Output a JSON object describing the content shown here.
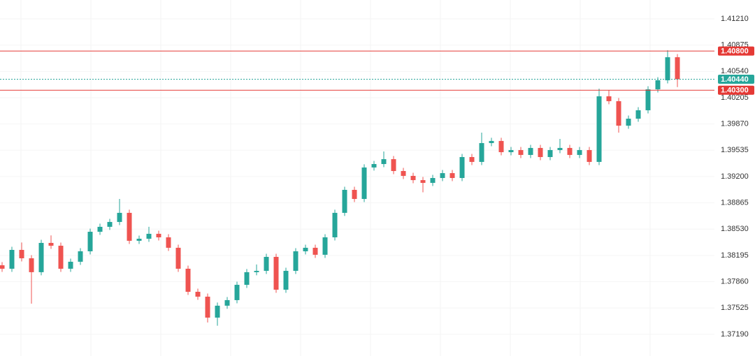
{
  "chart_data": {
    "type": "candlestick",
    "up_color": "#26a69a",
    "down_color": "#ef5350",
    "ylim": [
      1.36914,
      1.4145
    ],
    "yticks": [
      {
        "value": 1.4121,
        "label": "1.41210"
      },
      1.40875,
      {
        "value": 1.4054,
        "label": "1.40540"
      },
      1.40205,
      {
        "value": 1.3987,
        "label": "1.39870"
      },
      1.39535,
      {
        "value": 1.392,
        "label": "1.39200"
      },
      1.38865,
      {
        "value": 1.3853,
        "label": "1.38530"
      },
      1.38195,
      {
        "value": 1.3786,
        "label": "1.37860"
      },
      1.37525,
      {
        "value": 1.3719,
        "label": "1.37190"
      }
    ],
    "grid": true,
    "price_lines": [
      {
        "value": 1.408,
        "label": "1.40800",
        "color": "#e53935",
        "style": "solid"
      },
      {
        "value": 1.4044,
        "label": "1.40440",
        "color": "#26a69a",
        "style": "dotted"
      },
      {
        "value": 1.403,
        "label": "1.40300",
        "color": "#e53935",
        "style": "solid"
      }
    ],
    "open": [
      1.3807,
      1.38026,
      1.38266,
      1.38159,
      1.37982,
      1.38355,
      1.38319,
      1.38026,
      1.38115,
      1.38248,
      1.38497,
      1.3856,
      1.38622,
      1.38738,
      1.38382,
      1.38408,
      1.38471,
      1.38426,
      1.38293,
      1.38026,
      1.37732,
      1.3767,
      1.37403,
      1.37555,
      1.37626,
      1.37821,
      1.37982,
      1.37999,
      1.38177,
      1.37759,
      1.37999,
      1.38248,
      1.38293,
      1.38204,
      1.38426,
      1.38738,
      1.39031,
      1.38915,
      1.39316,
      1.3936,
      1.39422,
      1.39271,
      1.39209,
      1.39155,
      1.3912,
      1.39182,
      1.39244,
      1.39182,
      1.39449,
      1.39387,
      1.39627,
      1.39654,
      1.39511,
      1.39538,
      1.39476,
      1.39565,
      1.39449,
      1.39538,
      1.39565,
      1.39476,
      1.39538,
      1.39387,
      1.40223,
      1.40161,
      1.39849,
      1.39938,
      1.40045,
      1.40312,
      1.40427,
      1.40721
    ],
    "high": [
      1.3811,
      1.38306,
      1.3836,
      1.38199,
      1.38395,
      1.3845,
      1.38359,
      1.38155,
      1.38288,
      1.38537,
      1.386,
      1.38662,
      1.38915,
      1.38778,
      1.38448,
      1.3856,
      1.38511,
      1.38466,
      1.38333,
      1.38066,
      1.37772,
      1.3771,
      1.37595,
      1.37666,
      1.37861,
      1.38022,
      1.3808,
      1.38217,
      1.38217,
      1.38039,
      1.38288,
      1.38333,
      1.38333,
      1.38466,
      1.38778,
      1.39071,
      1.39071,
      1.39356,
      1.394,
      1.3952,
      1.39462,
      1.39311,
      1.39249,
      1.39195,
      1.39222,
      1.39284,
      1.39284,
      1.39489,
      1.39489,
      1.3976,
      1.39694,
      1.39694,
      1.39578,
      1.39578,
      1.39605,
      1.39605,
      1.39578,
      1.3968,
      1.39605,
      1.39578,
      1.39578,
      1.40321,
      1.403,
      1.40201,
      1.39978,
      1.40085,
      1.40352,
      1.40467,
      1.4081,
      1.40761
    ],
    "low": [
      1.37986,
      1.37986,
      1.38119,
      1.37581,
      1.37942,
      1.38279,
      1.37986,
      1.37986,
      1.38075,
      1.38208,
      1.38457,
      1.3852,
      1.38582,
      1.38342,
      1.38342,
      1.38368,
      1.38386,
      1.38253,
      1.37986,
      1.37692,
      1.3763,
      1.37341,
      1.373,
      1.37515,
      1.37586,
      1.37781,
      1.37942,
      1.37959,
      1.37719,
      1.37719,
      1.37959,
      1.38208,
      1.38164,
      1.38164,
      1.38386,
      1.38698,
      1.38875,
      1.38875,
      1.39276,
      1.3932,
      1.39231,
      1.39169,
      1.39115,
      1.39,
      1.3908,
      1.39142,
      1.39142,
      1.39142,
      1.39347,
      1.39347,
      1.39587,
      1.39471,
      1.39471,
      1.39436,
      1.39436,
      1.39409,
      1.39409,
      1.39498,
      1.39436,
      1.39436,
      1.39347,
      1.39347,
      1.40121,
      1.3976,
      1.39809,
      1.39898,
      1.40005,
      1.40272,
      1.40387,
      1.4034
    ],
    "close": [
      1.38026,
      1.38266,
      1.38159,
      1.37982,
      1.38355,
      1.38319,
      1.38026,
      1.38115,
      1.38248,
      1.38497,
      1.3856,
      1.38622,
      1.38738,
      1.38382,
      1.38408,
      1.38471,
      1.38426,
      1.38293,
      1.38026,
      1.37732,
      1.3767,
      1.37403,
      1.37555,
      1.37626,
      1.37821,
      1.37982,
      1.37999,
      1.38177,
      1.37759,
      1.37999,
      1.38248,
      1.38293,
      1.38204,
      1.38426,
      1.38738,
      1.39031,
      1.38915,
      1.39316,
      1.3936,
      1.39422,
      1.39271,
      1.39209,
      1.39155,
      1.3912,
      1.39182,
      1.39244,
      1.39182,
      1.39449,
      1.39387,
      1.39627,
      1.39654,
      1.39511,
      1.39538,
      1.39476,
      1.39565,
      1.39449,
      1.39538,
      1.39565,
      1.39476,
      1.39538,
      1.39387,
      1.40223,
      1.40161,
      1.39849,
      1.39938,
      1.40045,
      1.40312,
      1.40427,
      1.40721,
      1.4044
    ]
  }
}
